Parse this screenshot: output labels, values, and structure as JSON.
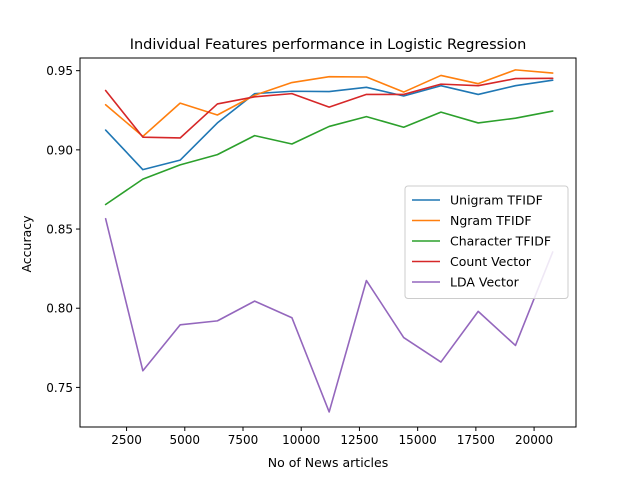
{
  "chart_data": {
    "type": "line",
    "title": "Individual Features performance in Logistic Regression",
    "xlabel": "No of News articles",
    "ylabel": "Accuracy",
    "xlim": [
      500,
      21800
    ],
    "ylim": [
      0.725,
      0.958
    ],
    "xticks": [
      2500,
      5000,
      7500,
      10000,
      12500,
      15000,
      17500,
      20000
    ],
    "xtick_labels": [
      "2500",
      "5000",
      "7500",
      "10000",
      "12500",
      "15000",
      "17500",
      "20000"
    ],
    "yticks": [
      0.75,
      0.8,
      0.85,
      0.9,
      0.95
    ],
    "ytick_labels": [
      "0.75",
      "0.80",
      "0.85",
      "0.90",
      "0.95"
    ],
    "grid": false,
    "legend_position": "center-right",
    "x": [
      1600,
      3200,
      4800,
      6400,
      8000,
      9600,
      11200,
      12800,
      14400,
      16000,
      17600,
      19200,
      20800
    ],
    "series": [
      {
        "name": "Unigram TFIDF",
        "color": "#1f77b4",
        "values": [
          0.9125,
          0.8875,
          0.8935,
          0.917,
          0.9355,
          0.937,
          0.9368,
          0.9395,
          0.934,
          0.9405,
          0.935,
          0.9405,
          0.944
        ]
      },
      {
        "name": "Ngram TFIDF",
        "color": "#ff7f0e",
        "values": [
          0.9285,
          0.9085,
          0.9295,
          0.922,
          0.9345,
          0.9425,
          0.9462,
          0.946,
          0.9365,
          0.947,
          0.9418,
          0.9505,
          0.9485
        ]
      },
      {
        "name": "Character TFIDF",
        "color": "#2ca02c",
        "values": [
          0.8655,
          0.8815,
          0.8905,
          0.897,
          0.909,
          0.9037,
          0.9148,
          0.921,
          0.9143,
          0.9238,
          0.917,
          0.92,
          0.9245
        ]
      },
      {
        "name": "Count Vector",
        "color": "#d62728",
        "values": [
          0.9375,
          0.908,
          0.9075,
          0.929,
          0.9335,
          0.9355,
          0.927,
          0.935,
          0.935,
          0.9415,
          0.9405,
          0.945,
          0.9452
        ]
      },
      {
        "name": "LDA Vector",
        "color": "#9467bd",
        "values": [
          0.8565,
          0.7605,
          0.7895,
          0.792,
          0.8045,
          0.794,
          0.7345,
          0.8175,
          0.7815,
          0.766,
          0.798,
          0.7765,
          0.8355
        ]
      }
    ]
  }
}
